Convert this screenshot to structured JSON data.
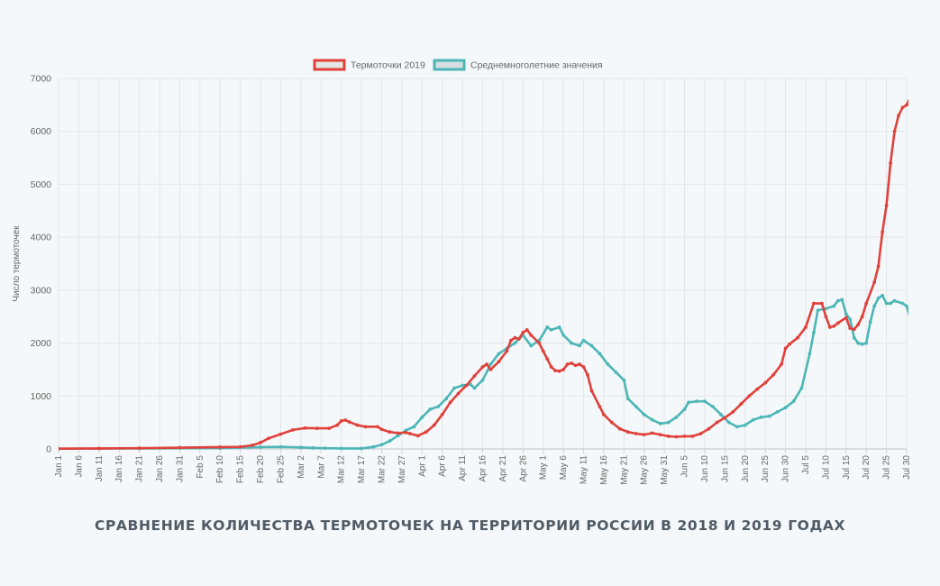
{
  "caption": "СРАВНЕНИЕ КОЛИЧЕСТВА ТЕРМОТОЧЕК НА ТЕРРИТОРИИ РОССИИ В 2018 И 2019 ГОДАХ",
  "chart_data": {
    "type": "line",
    "title": "",
    "xlabel": "",
    "ylabel": "Число термоточек",
    "ylim": [
      0,
      7000
    ],
    "yticks": [
      0,
      1000,
      2000,
      3000,
      4000,
      5000,
      6000,
      7000
    ],
    "grid": true,
    "legend_position": "top",
    "x_ticks": [
      "Jan 1",
      "Jan 6",
      "Jan 11",
      "Jan 16",
      "Jan 21",
      "Jan 26",
      "Jan 31",
      "Feb 5",
      "Feb 10",
      "Feb 15",
      "Feb 20",
      "Feb 25",
      "Mar 2",
      "Mar 7",
      "Mar 12",
      "Mar 17",
      "Mar 22",
      "Mar 27",
      "Apr 1",
      "Apr 6",
      "Apr 11",
      "Apr 16",
      "Apr 21",
      "Apr 26",
      "May 1",
      "May 6",
      "May 11",
      "May 16",
      "May 21",
      "May 26",
      "May 31",
      "Jun 5",
      "Jun 10",
      "Jun 15",
      "Jun 20",
      "Jun 25",
      "Jun 30",
      "Jul 5",
      "Jul 10",
      "Jul 15",
      "Jul 20",
      "Jul 25",
      "Jul 30"
    ],
    "x_days": [
      0,
      5,
      10,
      15,
      20,
      25,
      30,
      35,
      40,
      45,
      50,
      55,
      60,
      65,
      70,
      75,
      80,
      85,
      90,
      95,
      100,
      105,
      110,
      115,
      120,
      125,
      130,
      135,
      140,
      145,
      150,
      155,
      160,
      165,
      170,
      175,
      180,
      185,
      190,
      195,
      200,
      205,
      210
    ],
    "x_range_days": [
      0,
      210
    ],
    "series": [
      {
        "name": "Термоточки 2019",
        "color": "#e0413b",
        "fill": "#e5e5e5",
        "points": [
          [
            0,
            5
          ],
          [
            10,
            10
          ],
          [
            20,
            15
          ],
          [
            30,
            25
          ],
          [
            40,
            35
          ],
          [
            45,
            40
          ],
          [
            48,
            70
          ],
          [
            50,
            120
          ],
          [
            52,
            200
          ],
          [
            55,
            280
          ],
          [
            58,
            360
          ],
          [
            61,
            395
          ],
          [
            64,
            390
          ],
          [
            67,
            390
          ],
          [
            69,
            450
          ],
          [
            70,
            530
          ],
          [
            71,
            545
          ],
          [
            72,
            510
          ],
          [
            74,
            450
          ],
          [
            76,
            420
          ],
          [
            79,
            420
          ],
          [
            80,
            370
          ],
          [
            82,
            320
          ],
          [
            84,
            300
          ],
          [
            86,
            310
          ],
          [
            87,
            290
          ],
          [
            89,
            250
          ],
          [
            91,
            320
          ],
          [
            93,
            450
          ],
          [
            95,
            650
          ],
          [
            97,
            880
          ],
          [
            99,
            1050
          ],
          [
            101,
            1200
          ],
          [
            103,
            1380
          ],
          [
            105,
            1550
          ],
          [
            106,
            1600
          ],
          [
            107,
            1500
          ],
          [
            109,
            1650
          ],
          [
            111,
            1850
          ],
          [
            112,
            2050
          ],
          [
            113,
            2100
          ],
          [
            114,
            2080
          ],
          [
            115,
            2200
          ],
          [
            116,
            2250
          ],
          [
            117,
            2150
          ],
          [
            119,
            2000
          ],
          [
            120,
            1850
          ],
          [
            121,
            1700
          ],
          [
            122,
            1550
          ],
          [
            123,
            1480
          ],
          [
            124,
            1470
          ],
          [
            125,
            1500
          ],
          [
            126,
            1600
          ],
          [
            127,
            1620
          ],
          [
            128,
            1580
          ],
          [
            129,
            1600
          ],
          [
            130,
            1550
          ],
          [
            131,
            1400
          ],
          [
            132,
            1100
          ],
          [
            134,
            800
          ],
          [
            135,
            650
          ],
          [
            137,
            500
          ],
          [
            139,
            380
          ],
          [
            141,
            320
          ],
          [
            143,
            290
          ],
          [
            145,
            270
          ],
          [
            147,
            300
          ],
          [
            149,
            270
          ],
          [
            151,
            240
          ],
          [
            153,
            230
          ],
          [
            155,
            240
          ],
          [
            157,
            240
          ],
          [
            159,
            290
          ],
          [
            161,
            380
          ],
          [
            163,
            500
          ],
          [
            165,
            590
          ],
          [
            167,
            700
          ],
          [
            169,
            850
          ],
          [
            171,
            1000
          ],
          [
            173,
            1130
          ],
          [
            175,
            1250
          ],
          [
            177,
            1400
          ],
          [
            179,
            1600
          ],
          [
            180,
            1900
          ],
          [
            181,
            1980
          ],
          [
            183,
            2100
          ],
          [
            185,
            2300
          ],
          [
            187,
            2750
          ],
          [
            189,
            2750
          ],
          [
            190,
            2500
          ],
          [
            191,
            2300
          ],
          [
            192,
            2320
          ],
          [
            193,
            2380
          ],
          [
            195,
            2480
          ],
          [
            196,
            2280
          ],
          [
            197,
            2260
          ],
          [
            198,
            2350
          ],
          [
            199,
            2500
          ],
          [
            200,
            2750
          ],
          [
            202,
            3150
          ],
          [
            203,
            3450
          ],
          [
            204,
            4100
          ],
          [
            205,
            4600
          ],
          [
            206,
            5400
          ],
          [
            207,
            6000
          ],
          [
            208,
            6300
          ],
          [
            209,
            6450
          ],
          [
            210,
            6500
          ],
          [
            211,
            6650
          ],
          [
            212,
            6650
          ],
          [
            213,
            6600
          ],
          [
            214,
            6150
          ],
          [
            214.3,
            5800
          ]
        ]
      },
      {
        "name": "Среднемноголетние значения",
        "color": "#4db6b6",
        "fill": "#d5dfe2",
        "points": [
          [
            0,
            5
          ],
          [
            20,
            10
          ],
          [
            40,
            15
          ],
          [
            50,
            35
          ],
          [
            55,
            40
          ],
          [
            60,
            30
          ],
          [
            63,
            20
          ],
          [
            66,
            15
          ],
          [
            70,
            10
          ],
          [
            75,
            10
          ],
          [
            78,
            40
          ],
          [
            80,
            80
          ],
          [
            82,
            150
          ],
          [
            84,
            250
          ],
          [
            86,
            350
          ],
          [
            88,
            420
          ],
          [
            90,
            600
          ],
          [
            92,
            750
          ],
          [
            94,
            800
          ],
          [
            96,
            950
          ],
          [
            98,
            1150
          ],
          [
            100,
            1200
          ],
          [
            102,
            1220
          ],
          [
            103,
            1150
          ],
          [
            105,
            1300
          ],
          [
            107,
            1600
          ],
          [
            109,
            1800
          ],
          [
            111,
            1900
          ],
          [
            113,
            2000
          ],
          [
            115,
            2150
          ],
          [
            117,
            1950
          ],
          [
            119,
            2050
          ],
          [
            121,
            2300
          ],
          [
            122,
            2250
          ],
          [
            124,
            2300
          ],
          [
            125,
            2150
          ],
          [
            127,
            2000
          ],
          [
            129,
            1950
          ],
          [
            130,
            2050
          ],
          [
            132,
            1950
          ],
          [
            134,
            1800
          ],
          [
            136,
            1600
          ],
          [
            138,
            1450
          ],
          [
            140,
            1300
          ],
          [
            141,
            950
          ],
          [
            143,
            800
          ],
          [
            145,
            650
          ],
          [
            147,
            550
          ],
          [
            149,
            480
          ],
          [
            151,
            500
          ],
          [
            153,
            600
          ],
          [
            155,
            750
          ],
          [
            156,
            880
          ],
          [
            158,
            900
          ],
          [
            160,
            900
          ],
          [
            162,
            800
          ],
          [
            164,
            650
          ],
          [
            166,
            500
          ],
          [
            168,
            420
          ],
          [
            170,
            450
          ],
          [
            172,
            550
          ],
          [
            174,
            600
          ],
          [
            176,
            620
          ],
          [
            178,
            700
          ],
          [
            180,
            780
          ],
          [
            182,
            900
          ],
          [
            184,
            1150
          ],
          [
            186,
            1800
          ],
          [
            187,
            2200
          ],
          [
            188,
            2620
          ],
          [
            190,
            2650
          ],
          [
            192,
            2700
          ],
          [
            193,
            2800
          ],
          [
            194,
            2820
          ],
          [
            195,
            2550
          ],
          [
            196,
            2450
          ],
          [
            197,
            2100
          ],
          [
            198,
            2000
          ],
          [
            199,
            1980
          ],
          [
            200,
            2000
          ],
          [
            201,
            2400
          ],
          [
            202,
            2700
          ],
          [
            203,
            2850
          ],
          [
            204,
            2900
          ],
          [
            205,
            2750
          ],
          [
            206,
            2750
          ],
          [
            207,
            2800
          ],
          [
            209,
            2750
          ],
          [
            210,
            2700
          ],
          [
            211,
            2450
          ],
          [
            212,
            1950
          ],
          [
            213,
            1700
          ],
          [
            214,
            1500
          ]
        ]
      }
    ]
  }
}
